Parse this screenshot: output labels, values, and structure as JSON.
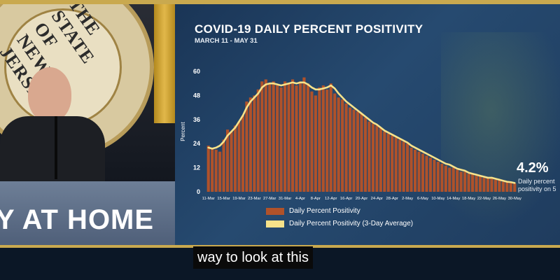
{
  "background": {
    "seal_text": "THE STATE OF NEW JERSEY",
    "podium_text": "Y AT HOME"
  },
  "caption": {
    "text": "way to look at this"
  },
  "colors": {
    "bar": "#b0522a",
    "line": "#f7e28a",
    "axis_text": "#ffffff"
  },
  "chart_data": {
    "type": "bar",
    "title": "COVID-19 DAILY PERCENT POSITIVITY",
    "subtitle": "MARCH 11 - MAY 31",
    "ylabel": "Percent",
    "xlabel": "",
    "ylim": [
      0,
      60
    ],
    "yticks": [
      "0",
      "12",
      "24",
      "36",
      "48",
      "60"
    ],
    "xtick_labels": [
      "11-Mar",
      "15-Mar",
      "19-Mar",
      "23-Mar",
      "27-Mar",
      "31-Mar",
      "4-Apr",
      "8-Apr",
      "12-Apr",
      "16-Apr",
      "20-Apr",
      "24-Apr",
      "28-Apr",
      "2-May",
      "6-May",
      "10-May",
      "14-May",
      "18-May",
      "22-May",
      "26-May",
      "30-May"
    ],
    "legend_position": "bottom",
    "series": [
      {
        "name": "Daily Percent Positivity",
        "kind": "bar",
        "values": [
          23,
          22,
          21,
          20,
          26,
          31,
          30,
          33,
          35,
          38,
          45,
          47,
          48,
          51,
          55,
          56,
          54,
          55,
          53,
          52,
          55,
          54,
          56,
          53,
          55,
          57,
          54,
          50,
          48,
          52,
          53,
          51,
          54,
          49,
          47,
          46,
          44,
          42,
          41,
          40,
          39,
          37,
          35,
          34,
          33,
          32,
          30,
          29,
          28,
          27,
          26,
          25,
          24,
          22,
          21,
          20,
          19,
          18,
          17,
          16,
          15,
          14,
          13,
          12,
          12,
          11,
          10,
          10,
          9,
          9,
          8,
          8,
          7,
          7,
          7,
          6,
          6,
          5,
          5,
          5,
          4.2
        ]
      },
      {
        "name": "Daily Percent Positivity (3-Day Average)",
        "kind": "line",
        "values": [
          22,
          21.5,
          22,
          23,
          25,
          28,
          30,
          32,
          35,
          38,
          42,
          45,
          47,
          49,
          52,
          53.5,
          54,
          54,
          53.5,
          53,
          53.5,
          54,
          54.5,
          54,
          54.5,
          54.5,
          53.5,
          52,
          51,
          51,
          51.5,
          52,
          53,
          51.5,
          49,
          47,
          45,
          43.5,
          42,
          40.5,
          39,
          37.5,
          36,
          34.5,
          33.5,
          32,
          30.5,
          29.5,
          28.5,
          27.5,
          26.5,
          25.5,
          24.5,
          23,
          22,
          21,
          20,
          19,
          18,
          17,
          16,
          15,
          14,
          13.5,
          12.5,
          11.5,
          11,
          10.5,
          9.5,
          9,
          8.5,
          8,
          7.5,
          7,
          7,
          6.5,
          6,
          5.5,
          5,
          4.8,
          4.4
        ]
      }
    ]
  },
  "callout": {
    "value": "4.2%",
    "caption_line1": "Daily percent",
    "caption_line2": "positivity on 5"
  }
}
